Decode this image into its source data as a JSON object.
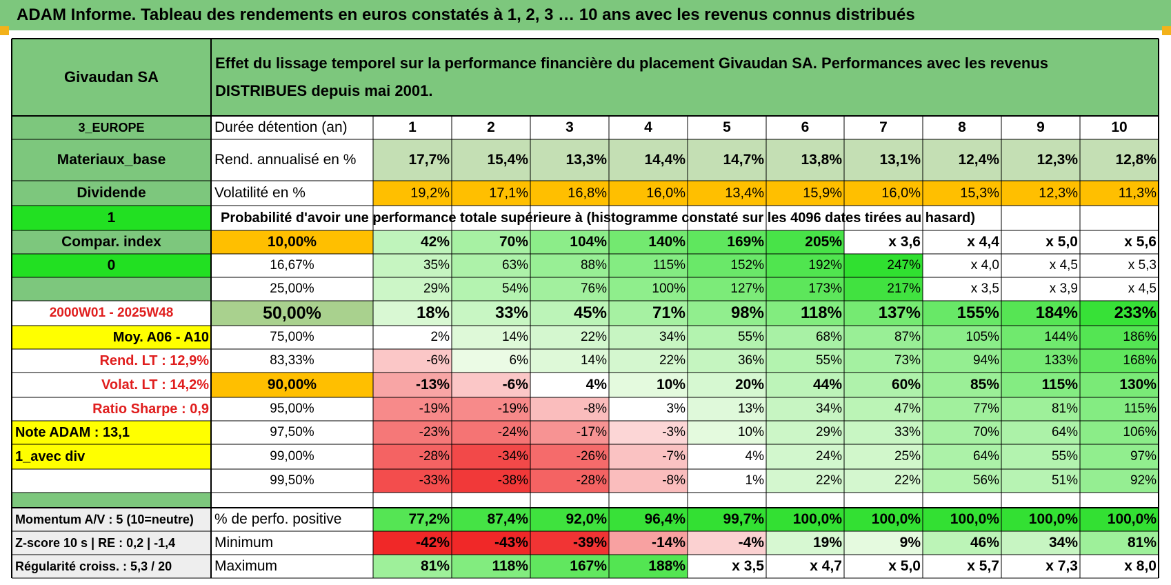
{
  "title": "ADAM Informe. Tableau des rendements en euros constatés à 1, 2, 3 … 10 ans avec les revenus connus distribués",
  "header": {
    "company": "Givaudan SA",
    "description": "Effet du lissage temporel sur la performance financière du placement Givaudan SA. Performances avec les revenus DISTRIBUES depuis mai 2001."
  },
  "left_panel": [
    {
      "text": "3_EUROPE"
    },
    {
      "text": "Materiaux_base"
    },
    {
      "text": "Dividende"
    },
    {
      "text": "1"
    },
    {
      "text": "Compar. index"
    },
    {
      "text": "0"
    },
    {
      "text": ""
    },
    {
      "text": "2000W01 - 2025W48"
    },
    {
      "text": "Moy. A06 - A10"
    },
    {
      "text": "Rend. LT :   12,9%"
    },
    {
      "text": "Volat. LT :   14,2%"
    },
    {
      "text": "Ratio Sharpe :    0,9"
    },
    {
      "text": "Note ADAM : 13,1"
    },
    {
      "text": "1_avec div"
    },
    {
      "text": ""
    }
  ],
  "summary": {
    "duration_label": "Durée détention (an)",
    "years": [
      "1",
      "2",
      "3",
      "4",
      "5",
      "6",
      "7",
      "8",
      "9",
      "10"
    ],
    "return_label": "Rend. annualisé en %",
    "returns": [
      "17,7%",
      "15,4%",
      "13,3%",
      "14,4%",
      "14,7%",
      "13,8%",
      "13,1%",
      "12,4%",
      "12,3%",
      "12,8%"
    ],
    "volatility_label": "Volatilité en %",
    "volatility": [
      "19,2%",
      "17,1%",
      "16,8%",
      "16,0%",
      "13,4%",
      "15,9%",
      "16,0%",
      "15,3%",
      "12,3%",
      "11,3%"
    ]
  },
  "prob_title": "Probabilité d'avoir une performance totale supérieure à (histogramme constaté sur les 4096 dates tirées au hasard)",
  "prob_rows": [
    {
      "p": "10,00%",
      "values": [
        "42%",
        "70%",
        "104%",
        "140%",
        "169%",
        "205%",
        "x 3,6",
        "x 4,4",
        "x 5,0",
        "x 5,6"
      ]
    },
    {
      "p": "16,67%",
      "values": [
        "35%",
        "63%",
        "88%",
        "115%",
        "152%",
        "192%",
        "247%",
        "x 4,0",
        "x 4,5",
        "x 5,3"
      ]
    },
    {
      "p": "25,00%",
      "values": [
        "29%",
        "54%",
        "76%",
        "100%",
        "127%",
        "173%",
        "217%",
        "x 3,5",
        "x 3,9",
        "x 4,5"
      ]
    },
    {
      "p": "50,00%",
      "values": [
        "18%",
        "33%",
        "45%",
        "71%",
        "98%",
        "118%",
        "137%",
        "155%",
        "184%",
        "233%"
      ]
    },
    {
      "p": "75,00%",
      "values": [
        "2%",
        "14%",
        "22%",
        "34%",
        "55%",
        "68%",
        "87%",
        "105%",
        "144%",
        "186%"
      ]
    },
    {
      "p": "83,33%",
      "values": [
        "-6%",
        "6%",
        "14%",
        "22%",
        "36%",
        "55%",
        "73%",
        "94%",
        "133%",
        "168%"
      ]
    },
    {
      "p": "90,00%",
      "values": [
        "-13%",
        "-6%",
        "4%",
        "10%",
        "20%",
        "44%",
        "60%",
        "85%",
        "115%",
        "130%"
      ]
    },
    {
      "p": "95,00%",
      "values": [
        "-19%",
        "-19%",
        "-8%",
        "3%",
        "13%",
        "34%",
        "47%",
        "77%",
        "81%",
        "115%"
      ]
    },
    {
      "p": "97,50%",
      "values": [
        "-23%",
        "-24%",
        "-17%",
        "-3%",
        "10%",
        "29%",
        "33%",
        "70%",
        "64%",
        "106%"
      ]
    },
    {
      "p": "99,00%",
      "values": [
        "-28%",
        "-34%",
        "-26%",
        "-7%",
        "4%",
        "24%",
        "25%",
        "64%",
        "55%",
        "97%"
      ]
    },
    {
      "p": "99,50%",
      "values": [
        "-33%",
        "-38%",
        "-28%",
        "-8%",
        "1%",
        "22%",
        "22%",
        "56%",
        "51%",
        "92%"
      ]
    }
  ],
  "footer_rows": [
    {
      "left": "Momentum A/V : 5 (10=neutre)",
      "label": "% de perfo. positive",
      "values": [
        "77,2%",
        "87,4%",
        "92,0%",
        "96,4%",
        "99,7%",
        "100,0%",
        "100,0%",
        "100,0%",
        "100,0%",
        "100,0%"
      ]
    },
    {
      "left": "Z-score 10 s | RE : 0,2 | -1,4",
      "label": "Minimum",
      "values": [
        "-42%",
        "-43%",
        "-39%",
        "-14%",
        "-4%",
        "19%",
        "9%",
        "46%",
        "34%",
        "81%"
      ]
    },
    {
      "left": "Régularité croiss. : 5,3 / 20",
      "label": "Maximum",
      "values": [
        "81%",
        "118%",
        "167%",
        "188%",
        "x 3,5",
        "x 4,7",
        "x 5,0",
        "x 5,7",
        "x 7,3",
        "x 8,0"
      ]
    }
  ],
  "colors": {
    "title_green": "#7dc77d",
    "bright_green": "#22e022",
    "light_olive": "#c4dfb4",
    "orange": "#ffbf00",
    "yellow": "#ffff00",
    "label_red": "#e01e1e"
  }
}
